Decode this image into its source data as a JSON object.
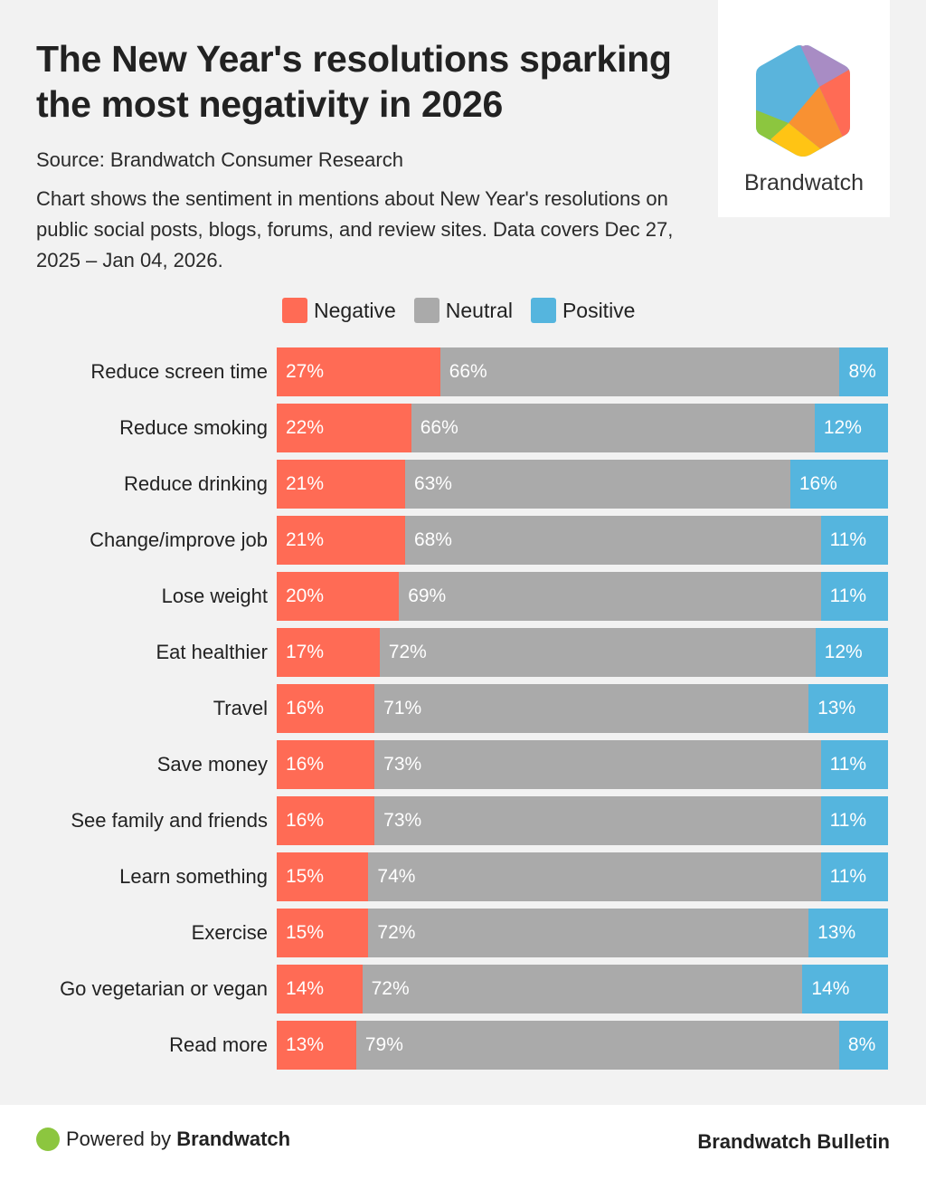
{
  "header": {
    "title": "The New Year's resolutions sparking the most negativity in 2026",
    "source": "Source: Brandwatch Consumer Research",
    "description": "Chart shows the sentiment in mentions about New Year's resolutions on public social posts, blogs, forums, and review sites. Data covers Dec 27, 2025 – Jan 04, 2026."
  },
  "logo": {
    "text": "Brandwatch",
    "colors": [
      "#5ab4dc",
      "#a88cc4",
      "#ff6b55",
      "#f89132",
      "#ffc414",
      "#8cc63f"
    ]
  },
  "footer": {
    "powered_prefix": "Powered by",
    "powered_brand": "Brandwatch",
    "dot_color": "#8cc63f",
    "bulletin": "Brandwatch Bulletin"
  },
  "chart_data": {
    "type": "bar",
    "orientation": "horizontal",
    "stacked": true,
    "normalized": true,
    "title": "The New Year's resolutions sparking the most negativity in 2026",
    "xlabel": "",
    "ylabel": "",
    "xlim": [
      0,
      100
    ],
    "unit": "%",
    "legend_position": "top-center",
    "grid": false,
    "legend": [
      {
        "name": "Negative",
        "color": "#ff6b55"
      },
      {
        "name": "Neutral",
        "color": "#aaaaaa"
      },
      {
        "name": "Positive",
        "color": "#55b5de"
      }
    ],
    "categories": [
      "Reduce screen time",
      "Reduce smoking",
      "Reduce drinking",
      "Change/improve job",
      "Lose weight",
      "Eat healthier",
      "Travel",
      "Save money",
      "See family and friends",
      "Learn something",
      "Exercise",
      "Go vegetarian or vegan",
      "Read more"
    ],
    "series": [
      {
        "name": "Negative",
        "color": "#ff6b55",
        "values": [
          27,
          22,
          21,
          21,
          20,
          17,
          16,
          16,
          16,
          15,
          15,
          14,
          13
        ]
      },
      {
        "name": "Neutral",
        "color": "#aaaaaa",
        "values": [
          66,
          66,
          63,
          68,
          69,
          72,
          71,
          73,
          73,
          74,
          72,
          72,
          79
        ]
      },
      {
        "name": "Positive",
        "color": "#55b5de",
        "values": [
          8,
          12,
          16,
          11,
          11,
          12,
          13,
          11,
          11,
          11,
          13,
          14,
          8
        ]
      }
    ]
  }
}
